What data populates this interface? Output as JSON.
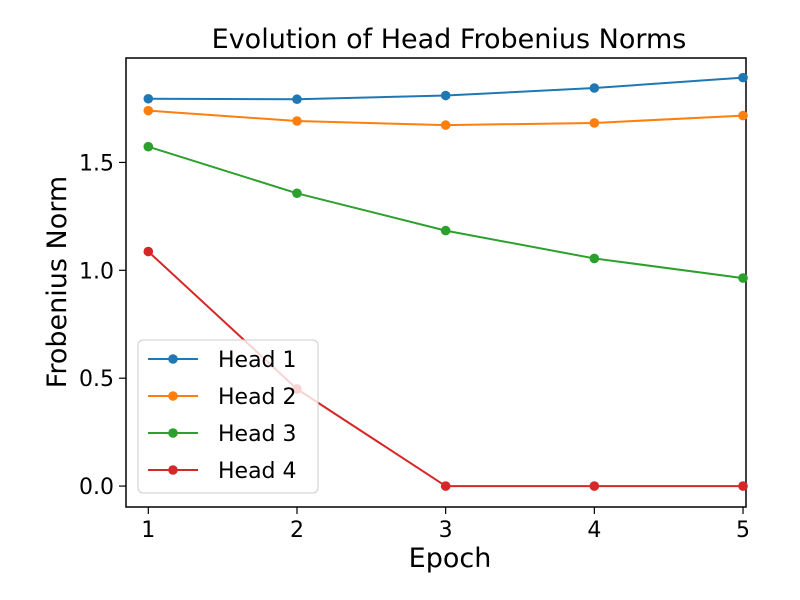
{
  "chart_data": {
    "type": "line",
    "title": "Evolution of Head Frobenius Norms",
    "xlabel": "Epoch",
    "ylabel": "Frobenius Norm",
    "x": [
      1,
      2,
      3,
      4,
      5
    ],
    "x_ticks": [
      "1",
      "2",
      "3",
      "4",
      "5"
    ],
    "y_ticks": [
      "0.0",
      "0.5",
      "1.0",
      "1.5"
    ],
    "xlim": [
      0.85,
      5.02
    ],
    "ylim": [
      -0.097,
      1.984
    ],
    "grid": false,
    "legend_position": "lower-left",
    "series": [
      {
        "name": "Head 1",
        "color": "#1f77b4",
        "values": [
          1.795,
          1.793,
          1.81,
          1.845,
          1.893
        ]
      },
      {
        "name": "Head 2",
        "color": "#ff7f0e",
        "values": [
          1.74,
          1.692,
          1.673,
          1.683,
          1.717
        ]
      },
      {
        "name": "Head 3",
        "color": "#2ca02c",
        "values": [
          1.573,
          1.357,
          1.184,
          1.055,
          0.964
        ]
      },
      {
        "name": "Head 4",
        "color": "#d62728",
        "values": [
          1.087,
          0.45,
          0.0,
          0.0,
          0.0
        ]
      }
    ]
  }
}
